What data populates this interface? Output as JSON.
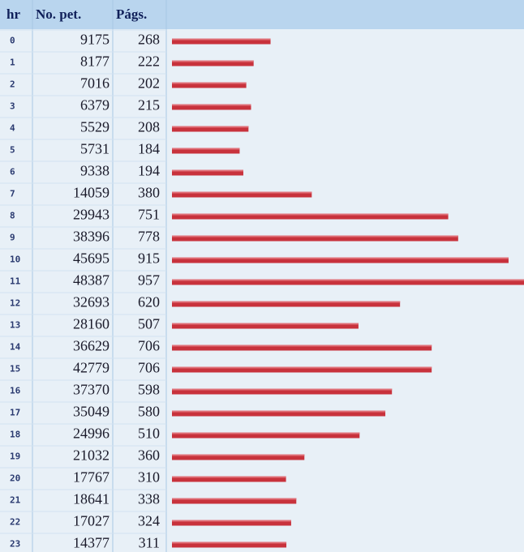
{
  "table": {
    "headers": [
      "hr",
      "No. pet.",
      "Págs."
    ],
    "rows": [
      [
        0,
        9175,
        268
      ],
      [
        1,
        8177,
        222
      ],
      [
        2,
        7016,
        202
      ],
      [
        3,
        6379,
        215
      ],
      [
        4,
        5529,
        208
      ],
      [
        5,
        5731,
        184
      ],
      [
        6,
        9338,
        194
      ],
      [
        7,
        14059,
        380
      ],
      [
        8,
        29943,
        751
      ],
      [
        9,
        38396,
        778
      ],
      [
        10,
        45695,
        915
      ],
      [
        11,
        48387,
        957
      ],
      [
        12,
        32693,
        620
      ],
      [
        13,
        28160,
        507
      ],
      [
        14,
        36629,
        706
      ],
      [
        15,
        42779,
        706
      ],
      [
        16,
        37370,
        598
      ],
      [
        17,
        35049,
        580
      ],
      [
        18,
        24996,
        510
      ],
      [
        19,
        21032,
        360
      ],
      [
        20,
        17767,
        310
      ],
      [
        21,
        18641,
        338
      ],
      [
        22,
        17027,
        324
      ],
      [
        23,
        14377,
        311
      ]
    ]
  }
}
